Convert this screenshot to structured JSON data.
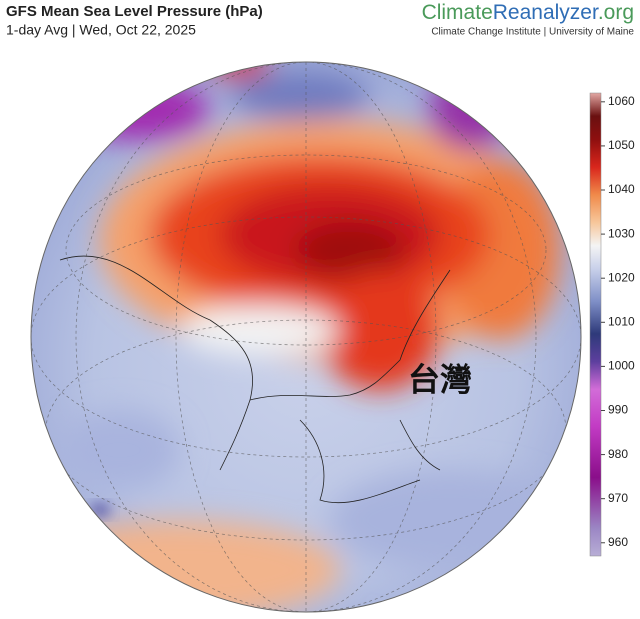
{
  "header": {
    "title": "GFS Mean Sea Level Pressure (hPa)",
    "subtitle": "1-day Avg | Wed, Oct 22, 2025",
    "brand": [
      "Climate",
      "Reanalyzer",
      ".org"
    ],
    "affiliation": "Climate Change Institute | University of Maine"
  },
  "map": {
    "annotation": "台灣"
  },
  "colorbar": {
    "lim": [
      957,
      1062
    ],
    "ticks": [
      960,
      970,
      980,
      990,
      1000,
      1010,
      1020,
      1030,
      1040,
      1050,
      1060
    ]
  }
}
